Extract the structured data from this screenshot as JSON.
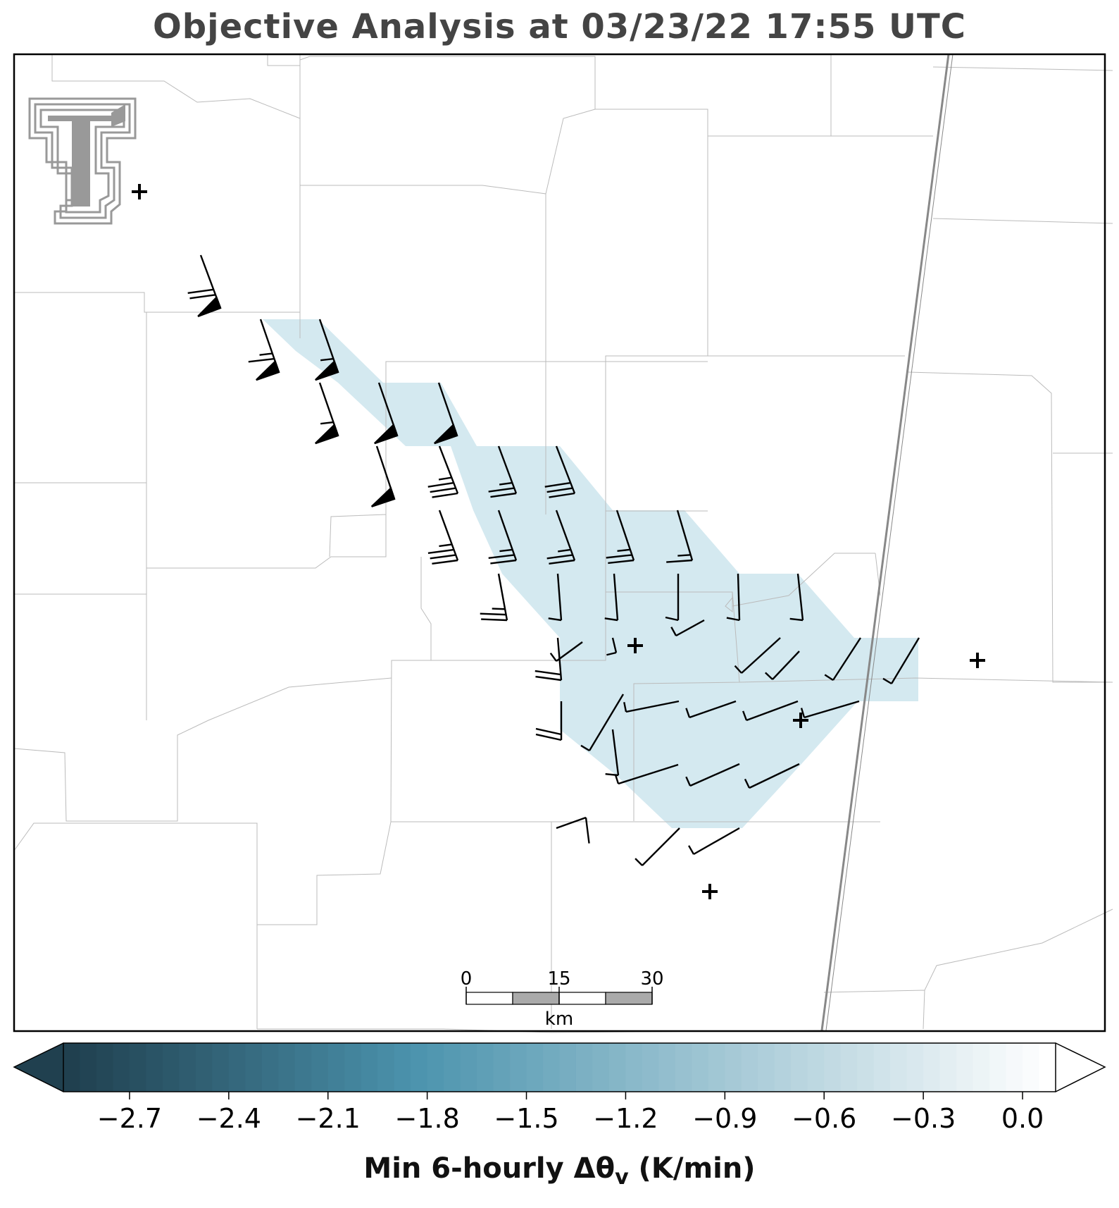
{
  "title": "Objective Analysis at 03/23/22 17:55 UTC",
  "colorbar": {
    "label": "Min 6-hourly Δθ",
    "label_subscript": "v",
    "label_unit": " (K/min)",
    "min": -2.9,
    "max": 0.1,
    "ticks": [
      "−2.7",
      "−2.4",
      "−2.1",
      "−1.8",
      "−1.5",
      "−1.2",
      "−0.9",
      "−0.6",
      "−0.3",
      "0.0"
    ],
    "tick_values": [
      -2.7,
      -2.4,
      -2.1,
      -1.8,
      -1.5,
      -1.2,
      -0.9,
      -0.6,
      -0.3,
      0.0
    ],
    "color_dark": "#20404f",
    "color_mid": "#4b93ad",
    "color_light": "#ffffff",
    "extend": "both"
  },
  "analysis_fill": {
    "value": -0.6,
    "color": "#d4e9f0"
  },
  "scale_bar": {
    "labels": [
      "0",
      "15",
      "30"
    ],
    "unit": "km"
  },
  "logo": {
    "name": "texas-tech-double-t-logo",
    "color": "#999999"
  },
  "station_markers": {
    "symbol": "+",
    "count": 6
  },
  "wind_barbs": {
    "color": "#000000",
    "count": 60
  },
  "colors": {
    "county_lines": "#bbbbbb",
    "state_line": "#888888",
    "frame": "#000000",
    "title": "#444444"
  }
}
